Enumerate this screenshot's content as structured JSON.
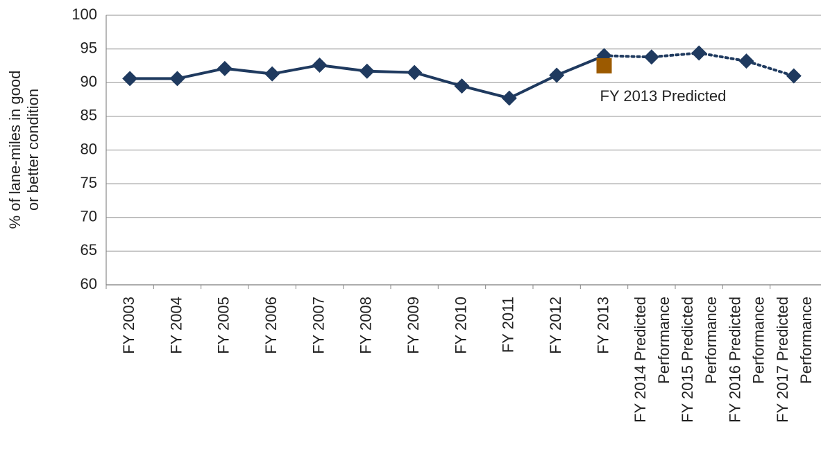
{
  "chart_data": {
    "type": "line",
    "y_label": "% of lane-miles in good or better condition",
    "categories": [
      "FY 2003",
      "FY 2004",
      "FY 2005",
      "FY 2006",
      "FY 2007",
      "FY 2008",
      "FY 2009",
      "FY 2010",
      "FY 2011",
      "FY 2012",
      "FY 2013",
      "FY 2014 Predicted Performance",
      "FY 2015 Predicted Performance",
      "FY 2016 Predicted Performance",
      "FY 2017 Predicted Performance"
    ],
    "series": [
      {
        "color": "#1f3a5f",
        "style": "solid",
        "marker": "diamond",
        "values": [
          90.6,
          90.6,
          92.1,
          91.3,
          92.6,
          91.7,
          91.5,
          89.5,
          87.7,
          91.1,
          94.0,
          null,
          null,
          null,
          null
        ]
      },
      {
        "color": "#1f3a5f",
        "style": "dotted",
        "marker": "diamond",
        "values": [
          null,
          null,
          null,
          null,
          null,
          null,
          null,
          null,
          null,
          null,
          94.0,
          93.8,
          94.4,
          93.2,
          91.0
        ]
      },
      {
        "name": "FY 2013 Predicted",
        "color": "#9c5a00",
        "style": "none",
        "marker": "square",
        "values": [
          null,
          null,
          null,
          null,
          null,
          null,
          null,
          null,
          null,
          null,
          92.5,
          null,
          null,
          null,
          null
        ]
      }
    ],
    "ylim": [
      60,
      100
    ],
    "yticks": [
      60,
      65,
      70,
      75,
      80,
      85,
      90,
      95,
      100
    ],
    "grid": true
  }
}
